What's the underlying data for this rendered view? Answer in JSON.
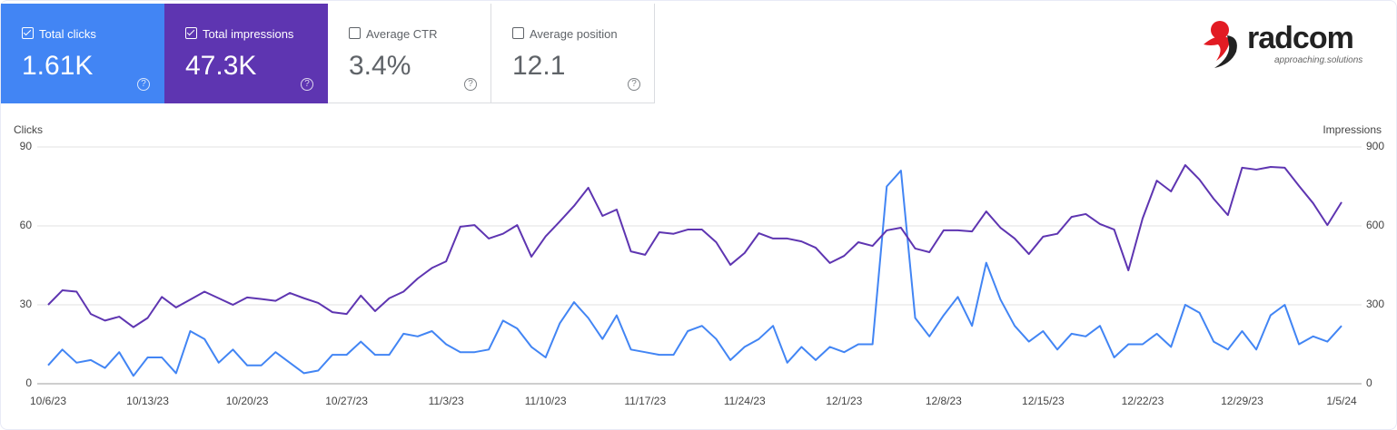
{
  "cards": [
    {
      "label": "Total clicks",
      "value": "1.61K",
      "checked": true,
      "color": "#4285f4"
    },
    {
      "label": "Total impressions",
      "value": "47.3K",
      "checked": true,
      "color": "#5e35b1"
    },
    {
      "label": "Average CTR",
      "value": "3.4%",
      "checked": false,
      "color": "#ffffff"
    },
    {
      "label": "Average position",
      "value": "12.1",
      "checked": false,
      "color": "#ffffff"
    }
  ],
  "logo": {
    "name": "radcom",
    "tagline": "approaching.solutions"
  },
  "chart_data": {
    "type": "line",
    "ylabel": "Clicks",
    "y2label": "Impressions",
    "categories": [
      "10/6/23",
      null,
      null,
      null,
      null,
      null,
      null,
      "10/13/23",
      null,
      null,
      null,
      null,
      null,
      null,
      "10/20/23",
      null,
      null,
      null,
      null,
      null,
      null,
      "10/27/23",
      null,
      null,
      null,
      null,
      null,
      null,
      "11/3/23",
      null,
      null,
      null,
      null,
      null,
      null,
      "11/10/23",
      null,
      null,
      null,
      null,
      null,
      null,
      "11/17/23",
      null,
      null,
      null,
      null,
      null,
      null,
      "11/24/23",
      null,
      null,
      null,
      null,
      null,
      null,
      "12/1/23",
      null,
      null,
      null,
      null,
      null,
      null,
      "12/8/23",
      null,
      null,
      null,
      null,
      null,
      null,
      "12/15/23",
      null,
      null,
      null,
      null,
      null,
      null,
      "12/22/23",
      null,
      null,
      null,
      null,
      null,
      null,
      "12/29/23",
      null,
      null,
      null,
      null,
      null,
      null,
      "1/5/24"
    ],
    "series": [
      {
        "name": "Clicks",
        "color": "#4285f4",
        "axis": "y",
        "values": [
          7,
          13,
          8,
          9,
          6,
          12,
          3,
          10,
          10,
          4,
          20,
          17,
          8,
          13,
          7,
          7,
          12,
          8,
          4,
          5,
          11,
          11,
          16,
          11,
          11,
          19,
          18,
          20,
          15,
          12,
          12,
          13,
          24,
          21,
          14,
          10,
          23,
          31,
          25,
          17,
          26,
          13,
          12,
          11,
          11,
          20,
          22,
          17,
          9,
          14,
          17,
          22,
          8,
          14,
          9,
          14,
          12,
          15,
          15,
          75,
          81,
          25,
          18,
          26,
          33,
          22,
          46,
          32,
          22,
          16,
          20,
          13,
          19,
          18,
          22,
          10,
          15,
          15,
          19,
          14,
          30,
          27,
          16,
          13,
          20,
          13,
          26,
          30,
          15,
          18,
          16,
          22
        ]
      },
      {
        "name": "Impressions",
        "color": "#5e35b1",
        "axis": "y2",
        "values": [
          300,
          355,
          350,
          265,
          240,
          255,
          215,
          250,
          330,
          290,
          320,
          350,
          325,
          300,
          328,
          322,
          315,
          345,
          325,
          307,
          272,
          265,
          335,
          276,
          325,
          350,
          400,
          440,
          465,
          597,
          603,
          552,
          570,
          603,
          483,
          560,
          617,
          676,
          745,
          638,
          662,
          503,
          490,
          576,
          570,
          586,
          586,
          538,
          452,
          497,
          572,
          552,
          552,
          541,
          517,
          459,
          486,
          538,
          524,
          583,
          593,
          514,
          500,
          583,
          583,
          579,
          655,
          593,
          552,
          493,
          559,
          570,
          634,
          645,
          607,
          586,
          431,
          628,
          772,
          731,
          831,
          776,
          703,
          641,
          821,
          814,
          824,
          821,
          752,
          686,
          603,
          690
        ]
      }
    ],
    "ylim": [
      0,
      90
    ],
    "yticks": [
      0,
      30,
      60,
      90
    ],
    "y2lim": [
      0,
      900
    ],
    "y2ticks": [
      0,
      300,
      600,
      900
    ],
    "grid": true
  }
}
